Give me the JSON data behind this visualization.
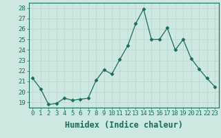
{
  "x": [
    0,
    1,
    2,
    3,
    4,
    5,
    6,
    7,
    8,
    9,
    10,
    11,
    12,
    13,
    14,
    15,
    16,
    17,
    18,
    19,
    20,
    21,
    22,
    23
  ],
  "y": [
    21.3,
    20.3,
    18.8,
    18.9,
    19.4,
    19.2,
    19.3,
    19.4,
    21.1,
    22.1,
    21.7,
    23.1,
    24.4,
    26.5,
    27.9,
    25.0,
    25.0,
    26.1,
    24.0,
    25.0,
    23.2,
    22.2,
    21.3,
    20.5
  ],
  "xlabel": "Humidex (Indice chaleur)",
  "ylim": [
    18.5,
    28.5
  ],
  "xlim": [
    -0.5,
    23.5
  ],
  "yticks": [
    19,
    20,
    21,
    22,
    23,
    24,
    25,
    26,
    27,
    28
  ],
  "xticks": [
    0,
    1,
    2,
    3,
    4,
    5,
    6,
    7,
    8,
    9,
    10,
    11,
    12,
    13,
    14,
    15,
    16,
    17,
    18,
    19,
    20,
    21,
    22,
    23
  ],
  "line_color": "#1a6b5a",
  "marker": "D",
  "marker_size": 2.5,
  "bg_color": "#cce8e0",
  "grid_color": "#b8d4cc",
  "tick_label_size": 6.5,
  "xlabel_size": 8.5
}
